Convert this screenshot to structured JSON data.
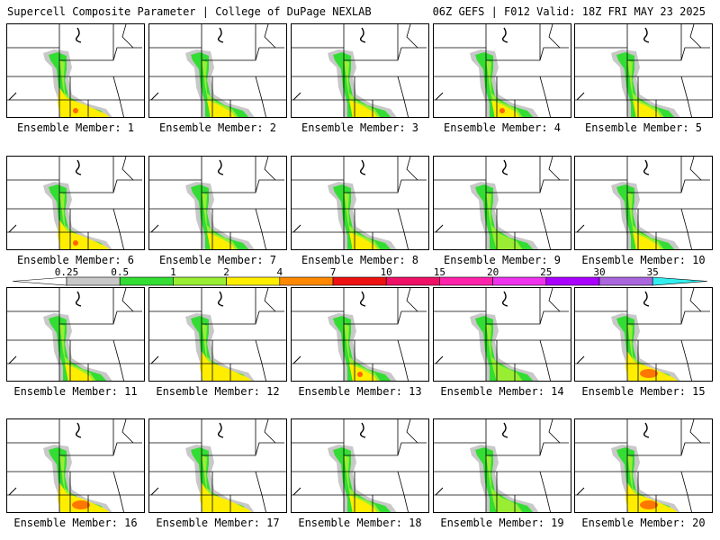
{
  "header": {
    "title": "Supercell Composite Parameter | College of DuPage NEXLAB",
    "run_info": "06Z GEFS | F012 Valid: 18Z FRI MAY 23 2025"
  },
  "member_label_prefix": "Ensemble Member: ",
  "members": [
    {
      "id": "1",
      "label": "Ensemble Member: 1",
      "intensity": 2,
      "max_color": "#ff6600"
    },
    {
      "id": "2",
      "label": "Ensemble Member: 2",
      "intensity": 1,
      "max_color": "#ffee00"
    },
    {
      "id": "3",
      "label": "Ensemble Member: 3",
      "intensity": 1,
      "max_color": "#ffee00"
    },
    {
      "id": "4",
      "label": "Ensemble Member: 4",
      "intensity": 1,
      "max_color": "#ff6600"
    },
    {
      "id": "5",
      "label": "Ensemble Member: 5",
      "intensity": 1,
      "max_color": "#ffee00"
    },
    {
      "id": "6",
      "label": "Ensemble Member: 6",
      "intensity": 2,
      "max_color": "#ff6600"
    },
    {
      "id": "7",
      "label": "Ensemble Member: 7",
      "intensity": 1,
      "max_color": "#ffee00"
    },
    {
      "id": "8",
      "label": "Ensemble Member: 8",
      "intensity": 1,
      "max_color": "#ffee00"
    },
    {
      "id": "9",
      "label": "Ensemble Member: 9",
      "intensity": 0,
      "max_color": "#ccff33"
    },
    {
      "id": "10",
      "label": "Ensemble Member: 10",
      "intensity": 1,
      "max_color": "#ffee00"
    },
    {
      "id": "11",
      "label": "Ensemble Member: 11",
      "intensity": 1,
      "max_color": "#ffee00"
    },
    {
      "id": "12",
      "label": "Ensemble Member: 12",
      "intensity": 2,
      "max_color": "#ffee00"
    },
    {
      "id": "13",
      "label": "Ensemble Member: 13",
      "intensity": 1,
      "max_color": "#ff6600"
    },
    {
      "id": "14",
      "label": "Ensemble Member: 14",
      "intensity": 0,
      "max_color": "#ccff33"
    },
    {
      "id": "15",
      "label": "Ensemble Member: 15",
      "intensity": 3,
      "max_color": "#ff6600"
    },
    {
      "id": "16",
      "label": "Ensemble Member: 16",
      "intensity": 3,
      "max_color": "#ff6600"
    },
    {
      "id": "17",
      "label": "Ensemble Member: 17",
      "intensity": 2,
      "max_color": "#ffee00"
    },
    {
      "id": "18",
      "label": "Ensemble Member: 18",
      "intensity": 1,
      "max_color": "#ffee00"
    },
    {
      "id": "19",
      "label": "Ensemble Member: 19",
      "intensity": 0,
      "max_color": "#ccff33"
    },
    {
      "id": "20",
      "label": "Ensemble Member: 20",
      "intensity": 3,
      "max_color": "#ff6600"
    }
  ],
  "colorbar": {
    "bins": [
      {
        "from": "0.25",
        "to": "0.5",
        "color": "#c8c8c8"
      },
      {
        "from": "0.5",
        "to": "1",
        "color": "#33dd33"
      },
      {
        "from": "1",
        "to": "2",
        "color": "#99ee33"
      },
      {
        "from": "2",
        "to": "4",
        "color": "#ffee00"
      },
      {
        "from": "4",
        "to": "7",
        "color": "#ff8800"
      },
      {
        "from": "7",
        "to": "10",
        "color": "#ee1111"
      },
      {
        "from": "10",
        "to": "15",
        "color": "#ee1166"
      },
      {
        "from": "15",
        "to": "20",
        "color": "#ff22aa"
      },
      {
        "from": "20",
        "to": "25",
        "color": "#ee33ee"
      },
      {
        "from": "25",
        "to": "30",
        "color": "#aa00ff"
      },
      {
        "from": "30",
        "to": "35",
        "color": "#aa66dd"
      }
    ],
    "labels": [
      "0.25",
      "0.5",
      "1",
      "2",
      "4",
      "7",
      "10",
      "15",
      "20",
      "25",
      "30",
      "35"
    ],
    "below_color": "#ffffff",
    "above_color": "#33eeee"
  }
}
